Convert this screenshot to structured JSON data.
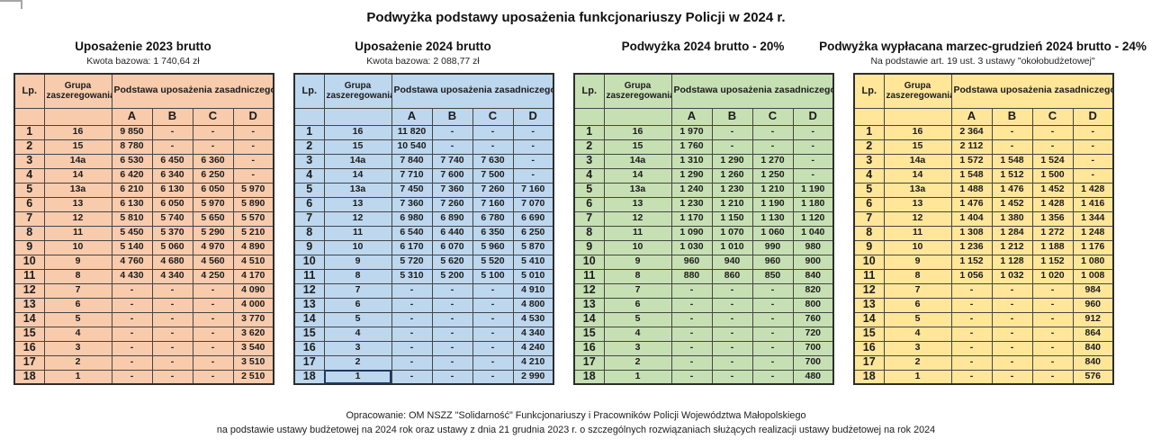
{
  "page_title": "Podwyżka podstawy uposażenia funkcjonariuszy Policji w 2024 r.",
  "column_headers": {
    "lp": "Lp.",
    "grupa": "Grupa zaszeregowania",
    "podstawa": "Podstawa uposażenia zasadniczego",
    "sub_columns": [
      "A",
      "B",
      "C",
      "D"
    ]
  },
  "tables": [
    {
      "id": "uposazenie-2023-brutto",
      "title": "Uposażenie 2023 brutto",
      "subtitle": "Kwota bazowa: 1 740,64 zł",
      "bg_color": "#f8cbad",
      "rows": [
        [
          "1",
          "16",
          "9 850",
          "-",
          "-",
          "-"
        ],
        [
          "2",
          "15",
          "8 780",
          "-",
          "-",
          "-"
        ],
        [
          "3",
          "14a",
          "6 530",
          "6 450",
          "6 360",
          "-"
        ],
        [
          "4",
          "14",
          "6 420",
          "6 340",
          "6 250",
          "-"
        ],
        [
          "5",
          "13a",
          "6 210",
          "6 130",
          "6 050",
          "5 970"
        ],
        [
          "6",
          "13",
          "6 130",
          "6 050",
          "5 970",
          "5 890"
        ],
        [
          "7",
          "12",
          "5 810",
          "5 740",
          "5 650",
          "5 570"
        ],
        [
          "8",
          "11",
          "5 450",
          "5 370",
          "5 290",
          "5 210"
        ],
        [
          "9",
          "10",
          "5 140",
          "5 060",
          "4 970",
          "4 890"
        ],
        [
          "10",
          "9",
          "4 760",
          "4 680",
          "4 560",
          "4 510"
        ],
        [
          "11",
          "8",
          "4 430",
          "4 340",
          "4 250",
          "4 170"
        ],
        [
          "12",
          "7",
          "-",
          "-",
          "-",
          "4 090"
        ],
        [
          "13",
          "6",
          "-",
          "-",
          "-",
          "4 000"
        ],
        [
          "14",
          "5",
          "-",
          "-",
          "-",
          "3 770"
        ],
        [
          "15",
          "4",
          "-",
          "-",
          "-",
          "3 620"
        ],
        [
          "16",
          "3",
          "-",
          "-",
          "-",
          "3 540"
        ],
        [
          "17",
          "2",
          "-",
          "-",
          "-",
          "3 510"
        ],
        [
          "18",
          "1",
          "-",
          "-",
          "-",
          "2 510"
        ]
      ]
    },
    {
      "id": "uposazenie-2024-brutto",
      "title": "Uposażenie 2024 brutto",
      "subtitle": "Kwota bazowa: 2 088,77 zł",
      "bg_color": "#bdd7ee",
      "active_cell": {
        "row": 17,
        "col": 1
      },
      "rows": [
        [
          "1",
          "16",
          "11 820",
          "-",
          "-",
          "-"
        ],
        [
          "2",
          "15",
          "10 540",
          "-",
          "-",
          "-"
        ],
        [
          "3",
          "14a",
          "7 840",
          "7 740",
          "7 630",
          "-"
        ],
        [
          "4",
          "14",
          "7 710",
          "7 600",
          "7 500",
          "-"
        ],
        [
          "5",
          "13a",
          "7 450",
          "7 360",
          "7 260",
          "7 160"
        ],
        [
          "6",
          "13",
          "7 360",
          "7 260",
          "7 160",
          "7 070"
        ],
        [
          "7",
          "12",
          "6 980",
          "6 890",
          "6 780",
          "6 690"
        ],
        [
          "8",
          "11",
          "6 540",
          "6 440",
          "6 350",
          "6 250"
        ],
        [
          "9",
          "10",
          "6 170",
          "6 070",
          "5 960",
          "5 870"
        ],
        [
          "10",
          "9",
          "5 720",
          "5 620",
          "5 520",
          "5 410"
        ],
        [
          "11",
          "8",
          "5 310",
          "5 200",
          "5 100",
          "5 010"
        ],
        [
          "12",
          "7",
          "-",
          "-",
          "-",
          "4 910"
        ],
        [
          "13",
          "6",
          "-",
          "-",
          "-",
          "4 800"
        ],
        [
          "14",
          "5",
          "-",
          "-",
          "-",
          "4 530"
        ],
        [
          "15",
          "4",
          "-",
          "-",
          "-",
          "4 340"
        ],
        [
          "16",
          "3",
          "-",
          "-",
          "-",
          "4 240"
        ],
        [
          "17",
          "2",
          "-",
          "-",
          "-",
          "4 210"
        ],
        [
          "18",
          "1",
          "-",
          "-",
          "-",
          "2 990"
        ]
      ]
    },
    {
      "id": "podwyzka-2024-brutto-20",
      "title": "Podwyżka 2024 brutto - 20%",
      "subtitle": "",
      "bg_color": "#c6e0b4",
      "rows": [
        [
          "1",
          "16",
          "1 970",
          "-",
          "-",
          "-"
        ],
        [
          "2",
          "15",
          "1 760",
          "-",
          "-",
          "-"
        ],
        [
          "3",
          "14a",
          "1 310",
          "1 290",
          "1 270",
          "-"
        ],
        [
          "4",
          "14",
          "1 290",
          "1 260",
          "1 250",
          "-"
        ],
        [
          "5",
          "13a",
          "1 240",
          "1 230",
          "1 210",
          "1 190"
        ],
        [
          "6",
          "13",
          "1 230",
          "1 210",
          "1 190",
          "1 180"
        ],
        [
          "7",
          "12",
          "1 170",
          "1 150",
          "1 130",
          "1 120"
        ],
        [
          "8",
          "11",
          "1 090",
          "1 070",
          "1 060",
          "1 040"
        ],
        [
          "9",
          "10",
          "1 030",
          "1 010",
          "990",
          "980"
        ],
        [
          "10",
          "9",
          "960",
          "940",
          "960",
          "900"
        ],
        [
          "11",
          "8",
          "880",
          "860",
          "850",
          "840"
        ],
        [
          "12",
          "7",
          "-",
          "-",
          "-",
          "820"
        ],
        [
          "13",
          "6",
          "-",
          "-",
          "-",
          "800"
        ],
        [
          "14",
          "5",
          "-",
          "-",
          "-",
          "760"
        ],
        [
          "15",
          "4",
          "-",
          "-",
          "-",
          "720"
        ],
        [
          "16",
          "3",
          "-",
          "-",
          "-",
          "700"
        ],
        [
          "17",
          "2",
          "-",
          "-",
          "-",
          "700"
        ],
        [
          "18",
          "1",
          "-",
          "-",
          "-",
          "480"
        ]
      ]
    },
    {
      "id": "podwyzka-marzec-grudzien-2024-24",
      "title": "Podwyżka wypłacana marzec-grudzień 2024 brutto - 24%",
      "subtitle": "Na podstawie art. 19 ust. 3 ustawy \"okołobudżetowej\"",
      "bg_color": "#ffe699",
      "rows": [
        [
          "1",
          "16",
          "2 364",
          "-",
          "-",
          "-"
        ],
        [
          "2",
          "15",
          "2 112",
          "-",
          "-",
          "-"
        ],
        [
          "3",
          "14a",
          "1 572",
          "1 548",
          "1 524",
          "-"
        ],
        [
          "4",
          "14",
          "1 548",
          "1 512",
          "1 500",
          "-"
        ],
        [
          "5",
          "13a",
          "1 488",
          "1 476",
          "1 452",
          "1 428"
        ],
        [
          "6",
          "13",
          "1 476",
          "1 452",
          "1 428",
          "1 416"
        ],
        [
          "7",
          "12",
          "1 404",
          "1 380",
          "1 356",
          "1 344"
        ],
        [
          "8",
          "11",
          "1 308",
          "1 284",
          "1 272",
          "1 248"
        ],
        [
          "9",
          "10",
          "1 236",
          "1 212",
          "1 188",
          "1 176"
        ],
        [
          "10",
          "9",
          "1 152",
          "1 128",
          "1 152",
          "1 080"
        ],
        [
          "11",
          "8",
          "1 056",
          "1 032",
          "1 020",
          "1 008"
        ],
        [
          "12",
          "7",
          "-",
          "-",
          "-",
          "984"
        ],
        [
          "13",
          "6",
          "-",
          "-",
          "-",
          "960"
        ],
        [
          "14",
          "5",
          "-",
          "-",
          "-",
          "912"
        ],
        [
          "15",
          "4",
          "-",
          "-",
          "-",
          "864"
        ],
        [
          "16",
          "3",
          "-",
          "-",
          "-",
          "840"
        ],
        [
          "17",
          "2",
          "-",
          "-",
          "-",
          "840"
        ],
        [
          "18",
          "1",
          "-",
          "-",
          "-",
          "576"
        ]
      ]
    }
  ],
  "footer": {
    "line1": "Opracowanie: OM NSZZ \"Solidarność\" Funkcjonariuszy i Pracowników Policji Województwa Małopolskiego",
    "line2": "na podstawie ustawy budżetowej na 2024 rok oraz ustawy z dnia 21 grudnia 2023 r. o szczególnych rozwiązaniach służących realizacji ustawy budżetowej na rok 2024"
  }
}
